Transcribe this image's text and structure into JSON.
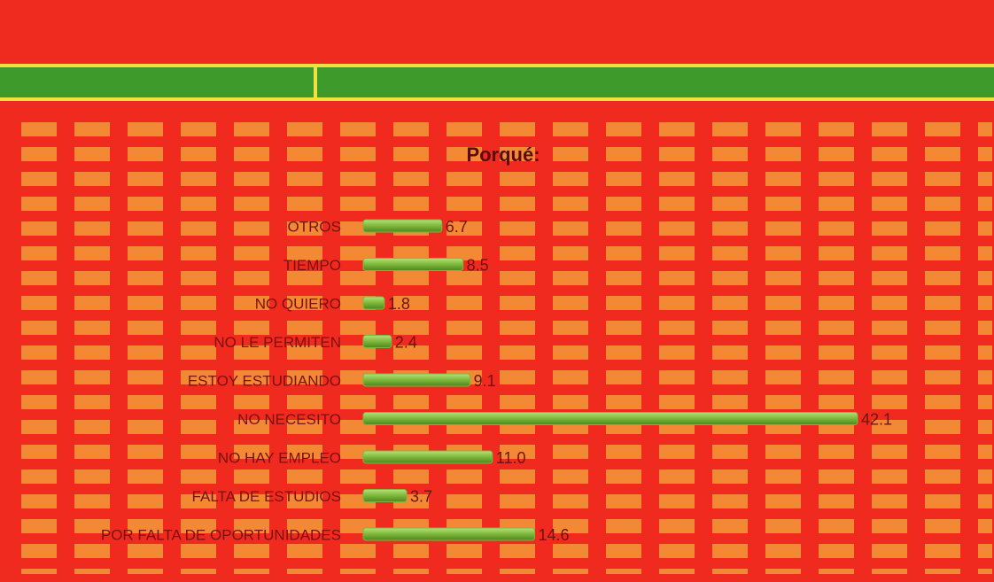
{
  "chart_data": {
    "type": "bar",
    "orientation": "horizontal",
    "title": "Porqué:",
    "categories": [
      "OTROS",
      "TIEMPO",
      "NO QUIERO",
      "NO LE PERMITEN",
      "ESTOY ESTUDIANDO",
      "NO NECESITO",
      "NO HAY EMPLEO",
      "FALTA DE ESTUDIOS",
      "POR FALTA DE OPORTUNIDADES"
    ],
    "values": [
      6.7,
      8.5,
      1.8,
      2.4,
      9.1,
      42.1,
      11.0,
      3.7,
      14.6
    ],
    "value_labels": [
      "6.7",
      "8.5",
      "1.8",
      "2.4",
      "9.1",
      "42.1",
      "11.0",
      "3.7",
      "14.6"
    ],
    "color": "#7cb83a"
  }
}
